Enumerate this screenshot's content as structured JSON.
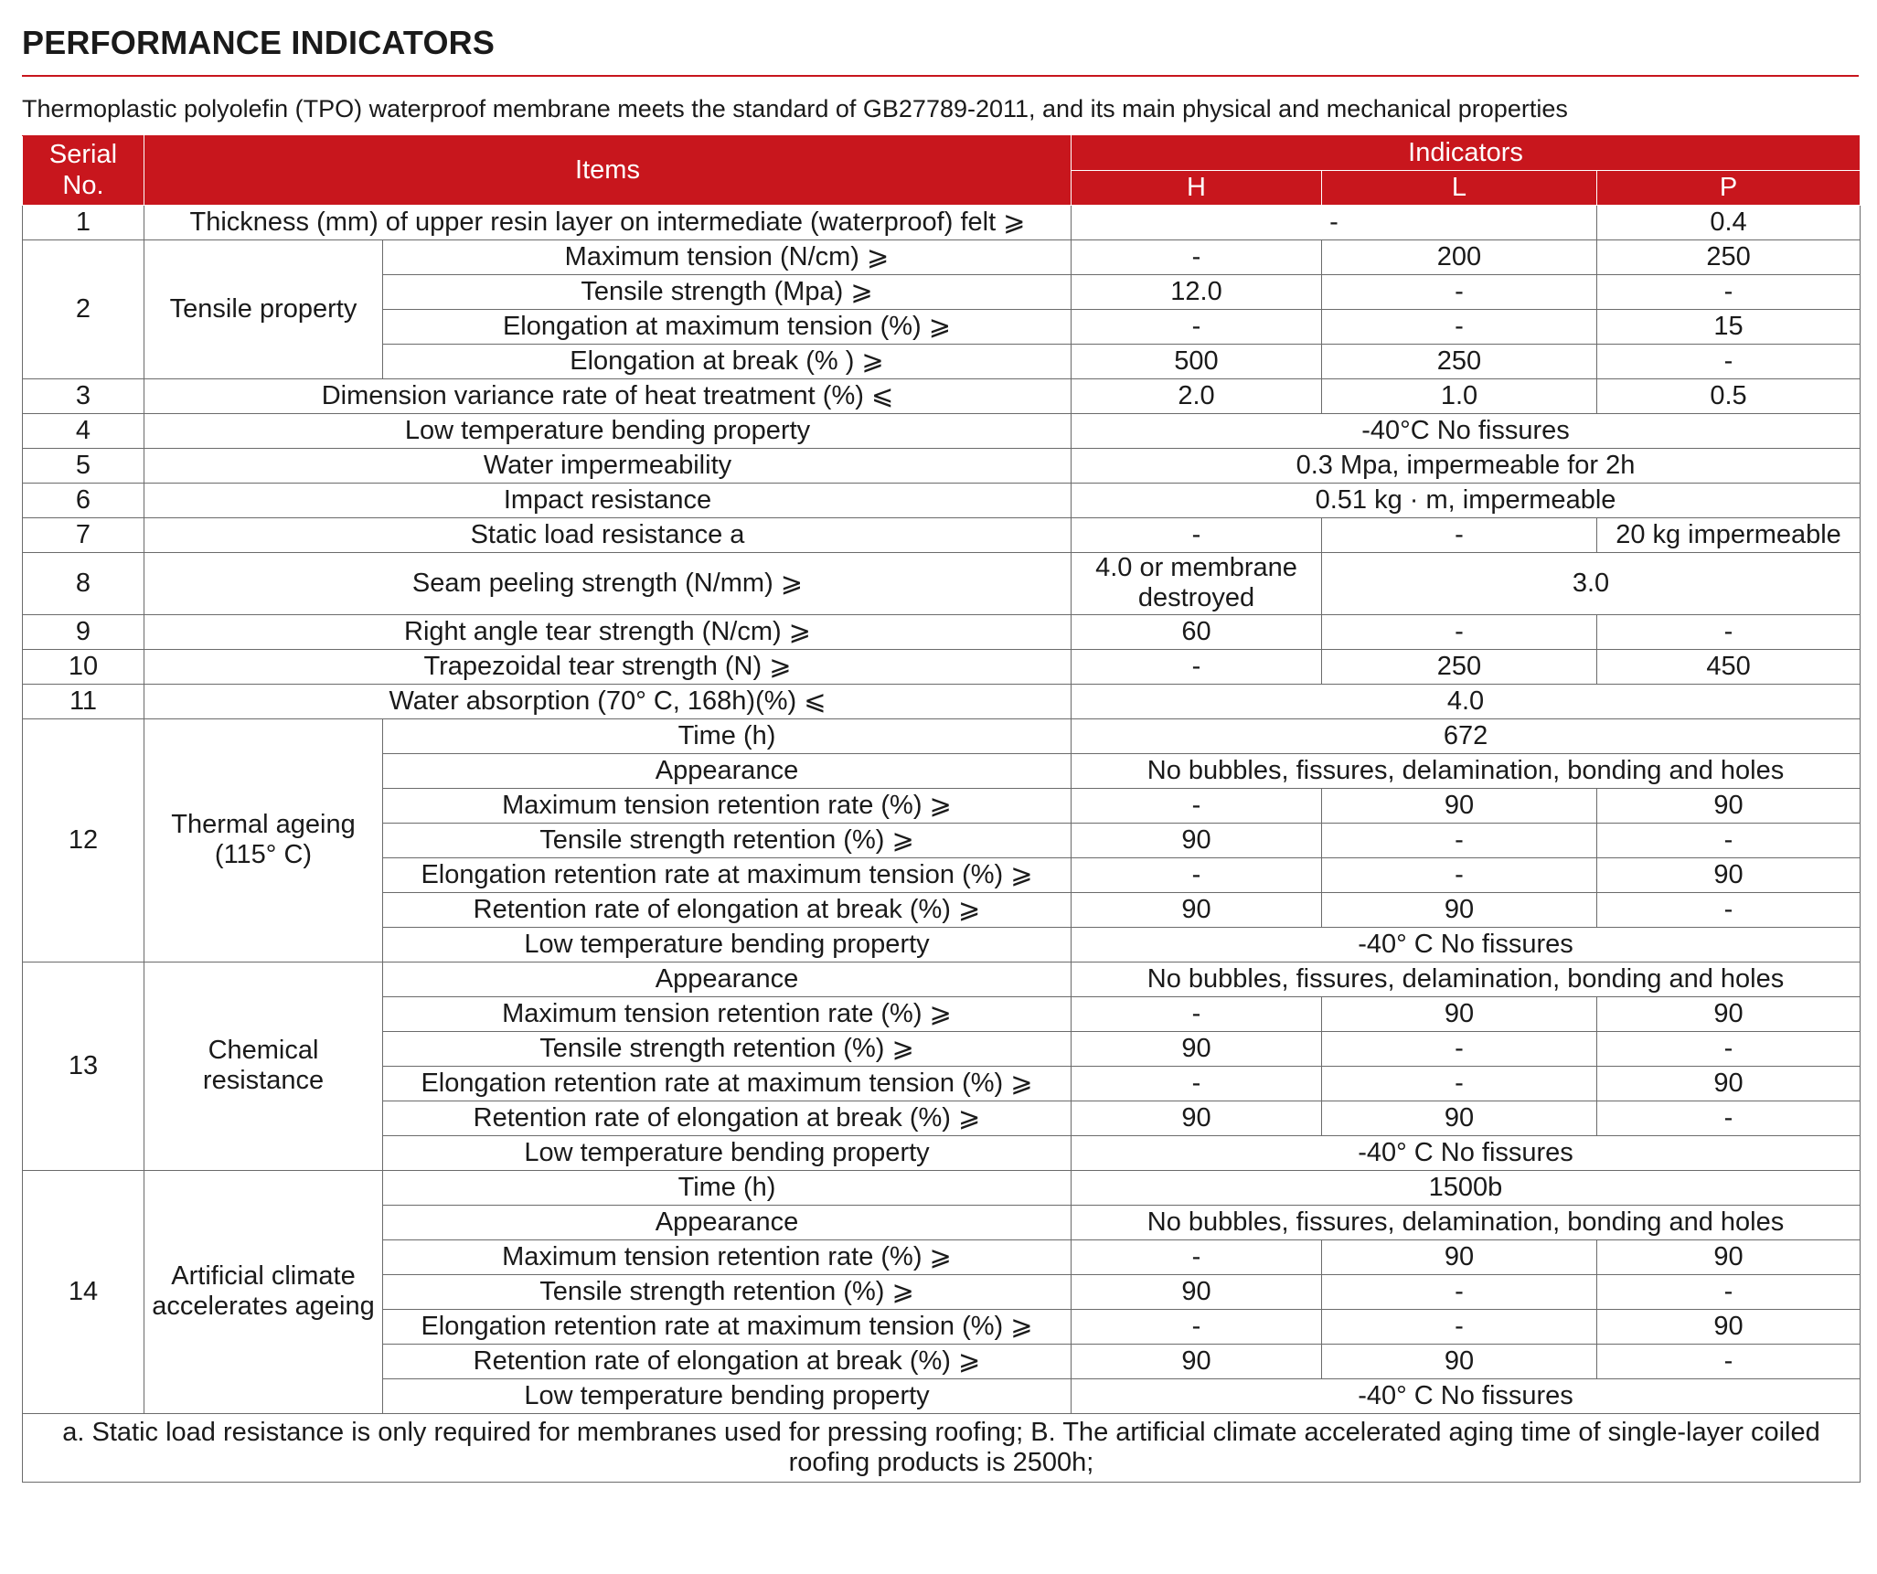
{
  "title": "PERFORMANCE INDICATORS",
  "intro": "Thermoplastic polyolefin (TPO) waterproof membrane meets the standard of GB27789-2011, and its main physical and mechanical properties",
  "table": {
    "header": {
      "serial": "Serial No.",
      "items": "Items",
      "indicators": "Indicators",
      "grades": [
        "H",
        "L",
        "P"
      ]
    },
    "rows": [
      {
        "no": "1",
        "item": "Thickness (mm) of upper resin layer on intermediate (waterproof) felt ⩾",
        "values": [
          "-",
          "0.4"
        ]
      },
      {
        "no": "2",
        "group": "Tensile property",
        "subitems": [
          {
            "item": "Maximum tension (N/cm) ⩾",
            "values": [
              "-",
              "200",
              "250"
            ]
          },
          {
            "item": "Tensile strength (Mpa) ⩾",
            "values": [
              "12.0",
              "-",
              "-"
            ]
          },
          {
            "item": "Elongation at maximum tension (%) ⩾",
            "values": [
              "-",
              "-",
              "15"
            ]
          },
          {
            "item": "Elongation at break (% ) ⩾",
            "values": [
              "500",
              "250",
              "-"
            ]
          }
        ]
      },
      {
        "no": "3",
        "item": "Dimension variance rate of heat treatment (%) ⩽",
        "values": [
          "2.0",
          "1.0",
          "0.5"
        ]
      },
      {
        "no": "4",
        "item": "Low temperature bending property",
        "values": [
          "-40°C No fissures"
        ]
      },
      {
        "no": "5",
        "item": "Water impermeability",
        "values": [
          "0.3 Mpa, impermeable for 2h"
        ]
      },
      {
        "no": "6",
        "item": "Impact resistance",
        "values": [
          "0.51 kg · m, impermeable"
        ]
      },
      {
        "no": "7",
        "item": "Static load resistance a",
        "values": [
          "-",
          "-",
          "20 kg impermeable"
        ]
      },
      {
        "no": "8",
        "item": "Seam peeling strength (N/mm) ⩾",
        "values": [
          "4.0 or membrane destroyed",
          "3.0"
        ]
      },
      {
        "no": "9",
        "item": "Right angle tear strength (N/cm) ⩾",
        "values": [
          "60",
          "-",
          "-"
        ]
      },
      {
        "no": "10",
        "item": "Trapezoidal tear strength (N) ⩾",
        "values": [
          "-",
          "250",
          "450"
        ]
      },
      {
        "no": "11",
        "item": "Water absorption (70° C, 168h)(%) ⩽",
        "values": [
          "4.0"
        ]
      },
      {
        "no": "12",
        "group": "Thermal ageing (115° C)",
        "subitems": [
          {
            "item": "Time (h)",
            "values": [
              "672"
            ]
          },
          {
            "item": "Appearance",
            "values": [
              "No bubbles, fissures, delamination, bonding and holes"
            ]
          },
          {
            "item": "Maximum tension retention rate (%) ⩾",
            "values": [
              "-",
              "90",
              "90"
            ]
          },
          {
            "item": "Tensile strength retention (%) ⩾",
            "values": [
              "90",
              "-",
              "-"
            ]
          },
          {
            "item": "Elongation retention rate at maximum tension (%) ⩾",
            "values": [
              "-",
              "-",
              "90"
            ]
          },
          {
            "item": "Retention rate of elongation at break (%) ⩾",
            "values": [
              "90",
              "90",
              "-"
            ]
          },
          {
            "item": "Low temperature bending property",
            "values": [
              "-40° C No fissures"
            ]
          }
        ]
      },
      {
        "no": "13",
        "group": "Chemical resistance",
        "subitems": [
          {
            "item": "Appearance",
            "values": [
              "No bubbles, fissures, delamination, bonding and holes"
            ]
          },
          {
            "item": "Maximum tension retention rate (%) ⩾",
            "values": [
              "-",
              "90",
              "90"
            ]
          },
          {
            "item": "Tensile strength retention (%) ⩾",
            "values": [
              "90",
              "-",
              "-"
            ]
          },
          {
            "item": "Elongation retention rate at maximum tension (%) ⩾",
            "values": [
              "-",
              "-",
              "90"
            ]
          },
          {
            "item": "Retention rate of elongation at break (%) ⩾",
            "values": [
              "90",
              "90",
              "-"
            ]
          },
          {
            "item": "Low temperature bending property",
            "values": [
              "-40° C No fissures"
            ]
          }
        ]
      },
      {
        "no": "14",
        "group": "Artificial climate accelerates ageing",
        "subitems": [
          {
            "item": "Time (h)",
            "values": [
              "1500b"
            ]
          },
          {
            "item": "Appearance",
            "values": [
              "No bubbles, fissures, delamination, bonding and holes"
            ]
          },
          {
            "item": "Maximum tension retention rate (%) ⩾",
            "values": [
              "-",
              "90",
              "90"
            ]
          },
          {
            "item": "Tensile strength retention (%) ⩾",
            "values": [
              "90",
              "-",
              "-"
            ]
          },
          {
            "item": "Elongation retention rate at maximum tension (%) ⩾",
            "values": [
              "-",
              "-",
              "90"
            ]
          },
          {
            "item": "Retention rate of elongation at break (%) ⩾",
            "values": [
              "90",
              "90",
              "-"
            ]
          },
          {
            "item": "Low temperature bending property",
            "values": [
              "-40° C No fissures"
            ]
          }
        ]
      }
    ],
    "footnote": "a. Static load resistance is only required for membranes used for pressing roofing; B. The artificial climate accelerated aging time of single-layer coiled roofing products is 2500h;"
  }
}
